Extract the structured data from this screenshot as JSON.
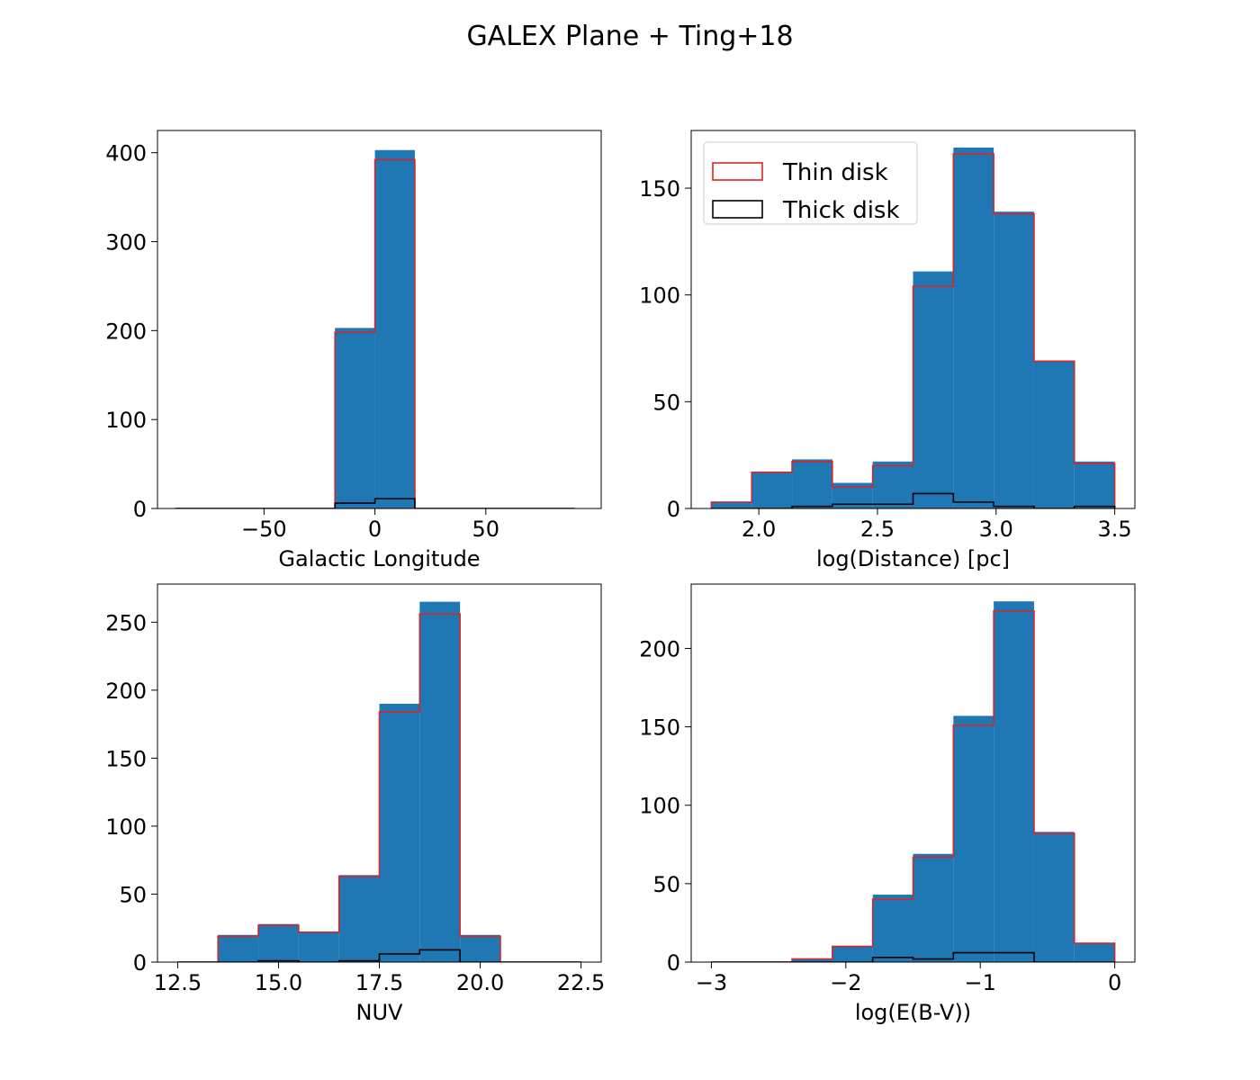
{
  "figure": {
    "title": "GALEX Plane + Ting+18"
  },
  "colors": {
    "all": "#1f77b4",
    "thin": "#d62728",
    "thick": "#000000"
  },
  "legend": {
    "placement": "upper-left of top-right panel",
    "entries": [
      {
        "label": "Thin disk",
        "color": "#d62728"
      },
      {
        "label": "Thick disk",
        "color": "#000000"
      }
    ]
  },
  "chart_data": [
    {
      "type": "histogram",
      "xlabel": "Galactic Longitude",
      "ylabel": "",
      "xlim": [
        -98,
        102
      ],
      "ylim": [
        0,
        425
      ],
      "xticks": [
        -50,
        0,
        50
      ],
      "xtick_labels": [
        "−50",
        "0",
        "50"
      ],
      "yticks": [
        0,
        100,
        200,
        300,
        400
      ],
      "ytick_labels": [
        "0",
        "100",
        "200",
        "300",
        "400"
      ],
      "bin_edges": [
        -90,
        -72,
        -54,
        -36,
        -18,
        0,
        18,
        36,
        54,
        72,
        90
      ],
      "series": [
        {
          "key": "all",
          "values": [
            0,
            0,
            0,
            0,
            203,
            403,
            0,
            0,
            0,
            0
          ]
        },
        {
          "key": "thin",
          "name": "Thin disk",
          "values": [
            0,
            0,
            0,
            0,
            198,
            392,
            0,
            0,
            0,
            0
          ]
        },
        {
          "key": "thick",
          "name": "Thick disk",
          "values": [
            0,
            0,
            0,
            0,
            6,
            11,
            0,
            0,
            0,
            0
          ]
        }
      ],
      "legend": false
    },
    {
      "type": "histogram",
      "xlabel": "log(Distance) [pc]",
      "ylabel": "",
      "xlim": [
        1.715,
        3.585
      ],
      "ylim": [
        0,
        177
      ],
      "xticks": [
        2.0,
        2.5,
        3.0,
        3.5
      ],
      "xtick_labels": [
        "2.0",
        "2.5",
        "3.0",
        "3.5"
      ],
      "yticks": [
        0,
        50,
        100,
        150
      ],
      "ytick_labels": [
        "0",
        "50",
        "100",
        "150"
      ],
      "bin_edges": [
        1.8,
        1.97,
        2.14,
        2.31,
        2.48,
        2.65,
        2.82,
        2.99,
        3.16,
        3.33,
        3.5
      ],
      "series": [
        {
          "key": "all",
          "values": [
            3,
            17,
            23,
            12,
            22,
            111,
            169,
            139,
            69,
            22
          ]
        },
        {
          "key": "thin",
          "name": "Thin disk",
          "values": [
            3,
            17,
            22,
            10,
            20,
            104,
            166,
            138,
            69,
            21
          ]
        },
        {
          "key": "thick",
          "name": "Thick disk",
          "values": [
            0,
            0,
            1,
            2,
            2,
            7,
            3,
            1,
            0,
            1
          ]
        }
      ],
      "legend": true
    },
    {
      "type": "histogram",
      "xlabel": "NUV",
      "ylabel": "",
      "xlim": [
        12,
        23
      ],
      "ylim": [
        0,
        278
      ],
      "xticks": [
        12.5,
        15.0,
        17.5,
        20.0,
        22.5
      ],
      "xtick_labels": [
        "12.5",
        "15.0",
        "17.5",
        "20.0",
        "22.5"
      ],
      "yticks": [
        0,
        50,
        100,
        150,
        200,
        250
      ],
      "ytick_labels": [
        "0",
        "50",
        "100",
        "150",
        "200",
        "250"
      ],
      "bin_edges": [
        12.5,
        13.5,
        14.5,
        15.5,
        16.5,
        17.5,
        18.5,
        19.5,
        20.5,
        21.5,
        22.5
      ],
      "series": [
        {
          "key": "all",
          "values": [
            0,
            20,
            28,
            22,
            64,
            190,
            265,
            20,
            0,
            0
          ]
        },
        {
          "key": "thin",
          "name": "Thin disk",
          "values": [
            0,
            19,
            27,
            22,
            63,
            184,
            256,
            19,
            0,
            0
          ]
        },
        {
          "key": "thick",
          "name": "Thick disk",
          "values": [
            0,
            0,
            1,
            0,
            1,
            6,
            9,
            0,
            0,
            0
          ]
        }
      ],
      "legend": false
    },
    {
      "type": "histogram",
      "xlabel": "log(E(B-V))",
      "ylabel": "",
      "xlim": [
        -3.15,
        0.15
      ],
      "ylim": [
        0,
        241
      ],
      "xticks": [
        -3,
        -2,
        -1,
        0
      ],
      "xtick_labels": [
        "−3",
        "−2",
        "−1",
        "0"
      ],
      "yticks": [
        0,
        50,
        100,
        150,
        200
      ],
      "ytick_labels": [
        "0",
        "50",
        "100",
        "150",
        "200"
      ],
      "bin_edges": [
        -3.0,
        -2.7,
        -2.4,
        -2.1,
        -1.8,
        -1.5,
        -1.2,
        -0.9,
        -0.6,
        -0.3,
        0.0
      ],
      "series": [
        {
          "key": "all",
          "values": [
            0,
            0,
            2,
            10,
            43,
            69,
            157,
            230,
            83,
            12
          ]
        },
        {
          "key": "thin",
          "name": "Thin disk",
          "values": [
            0,
            0,
            2,
            10,
            40,
            67,
            151,
            224,
            82,
            12
          ]
        },
        {
          "key": "thick",
          "name": "Thick disk",
          "values": [
            0,
            0,
            0,
            0,
            3,
            2,
            6,
            6,
            0,
            0
          ]
        }
      ],
      "legend": false
    }
  ]
}
